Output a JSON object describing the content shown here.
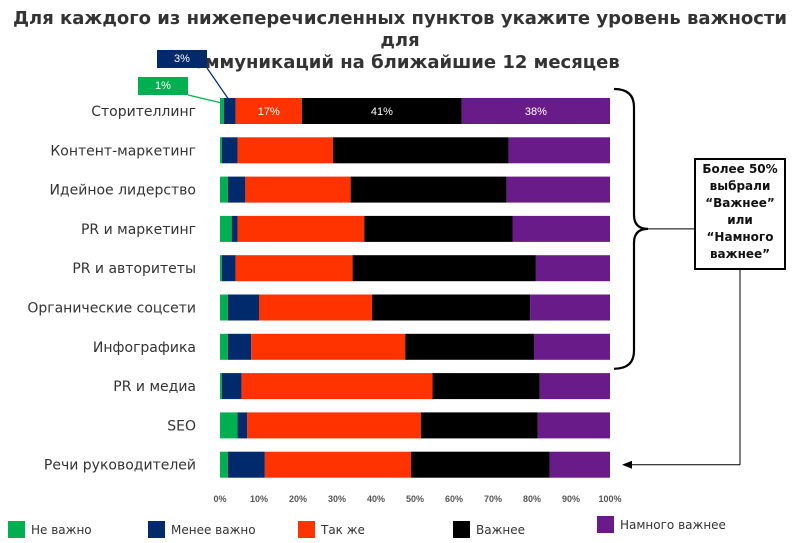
{
  "chart_data": {
    "type": "bar",
    "orientation": "horizontal",
    "stacked": true,
    "title_lines": [
      "Для каждого из нижеперечисленных пунктов укажите уровень важности для",
      "коммуникаций на ближайшие 12 месяцев"
    ],
    "categories": [
      "Сторителлинг",
      "Контент-маркетинг",
      "Идейное лидерство",
      "PR и маркетинг",
      "PR и авторитеты",
      "Органические соцсети",
      "Инфографика",
      "PR и медиа",
      "SEO",
      "Речи руководителей"
    ],
    "series": [
      {
        "name": "Не важно",
        "color": "#00b050",
        "values": [
          1,
          0.5,
          2,
          3,
          0.5,
          2,
          2,
          0.5,
          4.5,
          2
        ]
      },
      {
        "name": "Менее важно",
        "color": "#002a6b",
        "values": [
          3,
          4,
          4.5,
          1.5,
          3.5,
          8,
          6,
          5,
          2.5,
          9.5
        ]
      },
      {
        "name": "Так же",
        "color": "#ff3300",
        "values": [
          17,
          24.5,
          27,
          32.5,
          30,
          29,
          39.5,
          49,
          44.5,
          37.5
        ]
      },
      {
        "name": "Важнее",
        "color": "#000000",
        "values": [
          41,
          45,
          40,
          38,
          47,
          40.5,
          33,
          27.5,
          30,
          35.5
        ]
      },
      {
        "name": "Намного важнее",
        "color": "#6a1b8a",
        "values": [
          38,
          26,
          26.5,
          25,
          19,
          20.5,
          19.5,
          18,
          18.5,
          15.5
        ]
      }
    ],
    "data_labels": [
      {
        "category": "Сторителлинг",
        "series": "Не важно",
        "text": "1%",
        "style": "callout"
      },
      {
        "category": "Сторителлинг",
        "series": "Менее важно",
        "text": "3%",
        "style": "callout"
      },
      {
        "category": "Сторителлинг",
        "series": "Так же",
        "text": "17%",
        "style": "inside"
      },
      {
        "category": "Сторителлинг",
        "series": "Важнее",
        "text": "41%",
        "style": "inside"
      },
      {
        "category": "Сторителлинг",
        "series": "Намного важнее",
        "text": "38%",
        "style": "inside"
      }
    ],
    "x_ticks": [
      "0%",
      "10%",
      "20%",
      "30%",
      "40%",
      "50%",
      "60%",
      "70%",
      "80%",
      "90%",
      "100%"
    ],
    "xlim": [
      0,
      100
    ],
    "grid": false,
    "legend": "bottom"
  },
  "annotation": {
    "lines": [
      "Более 50%",
      "выбрали",
      "“Важнее”",
      "или",
      "“Намного",
      "важнее”"
    ]
  }
}
